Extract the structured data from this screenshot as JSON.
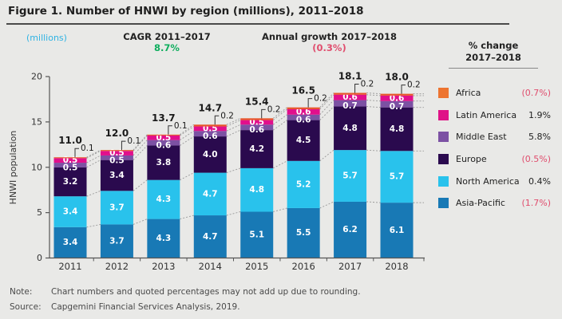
{
  "figure": {
    "title": "Figure 1. Number of HNWI by region (millions), 2011–2018",
    "unit_label": "(millions)",
    "cagr_label": "CAGR 2011–2017",
    "cagr_value": "8.7%",
    "growth_label": "Annual growth 2017–2018",
    "growth_value": "(0.3%)"
  },
  "legend": {
    "header_line1": "% change",
    "header_line2": "2017–2018",
    "items": [
      {
        "label": "Africa",
        "value": "(0.7%)",
        "negative": true,
        "color": "#ed7430"
      },
      {
        "label": "Latin America",
        "value": "1.9%",
        "negative": false,
        "color": "#df1387"
      },
      {
        "label": "Middle East",
        "value": "5.8%",
        "negative": false,
        "color": "#7c51a3"
      },
      {
        "label": "Europe",
        "value": "(0.5%)",
        "negative": true,
        "color": "#2a0a4e"
      },
      {
        "label": "North America",
        "value": "0.4%",
        "negative": false,
        "color": "#29c2ec"
      },
      {
        "label": "Asia-Pacific",
        "value": "(1.7%)",
        "negative": true,
        "color": "#1879b5"
      }
    ]
  },
  "chart_data": {
    "type": "bar",
    "stacked": true,
    "title": "Number of HNWI by region (millions), 2011–2018",
    "ylabel": "HNWI population",
    "ylim": [
      0,
      20
    ],
    "yticks": [
      0,
      5,
      10,
      15,
      20
    ],
    "grid": false,
    "legend_position": "right",
    "categories": [
      "2011",
      "2012",
      "2013",
      "2014",
      "2015",
      "2016",
      "2017",
      "2018"
    ],
    "totals": [
      "11.0",
      "12.0",
      "13.7",
      "14.7",
      "15.4",
      "16.5",
      "18.1",
      "18.0"
    ],
    "series": [
      {
        "name": "Asia-Pacific",
        "color": "#1879b5",
        "values": [
          3.4,
          3.7,
          4.3,
          4.7,
          5.1,
          5.5,
          6.2,
          6.1
        ]
      },
      {
        "name": "North America",
        "color": "#29c2ec",
        "values": [
          3.4,
          3.7,
          4.3,
          4.7,
          4.8,
          5.2,
          5.7,
          5.7
        ]
      },
      {
        "name": "Europe",
        "color": "#2a0a4e",
        "values": [
          3.2,
          3.4,
          3.8,
          4.0,
          4.2,
          4.5,
          4.8,
          4.8
        ]
      },
      {
        "name": "Middle East",
        "color": "#7c51a3",
        "values": [
          0.5,
          0.5,
          0.6,
          0.6,
          0.6,
          0.6,
          0.7,
          0.7
        ]
      },
      {
        "name": "Latin America",
        "color": "#e10f8c",
        "values": [
          0.5,
          0.5,
          0.5,
          0.5,
          0.5,
          0.6,
          0.6,
          0.6
        ]
      },
      {
        "name": "Africa",
        "color": "#e8552b",
        "values": [
          0.1,
          0.1,
          0.1,
          0.2,
          0.2,
          0.2,
          0.2,
          0.2
        ],
        "label_outside": true
      }
    ]
  },
  "notes": {
    "note_label": "Note:",
    "note_text": "Chart numbers and quoted percentages may not add up due to rounding.",
    "source_label": "Source:",
    "source_text": "Capgemini Financial Services Analysis, 2019."
  },
  "colors": {
    "background": "#e9e9e7",
    "accent_cyan": "#2fb3e3",
    "accent_green": "#0fae5e",
    "accent_pink": "#e04e6e",
    "axis": "#555555",
    "connector": "#9a9a9a"
  }
}
